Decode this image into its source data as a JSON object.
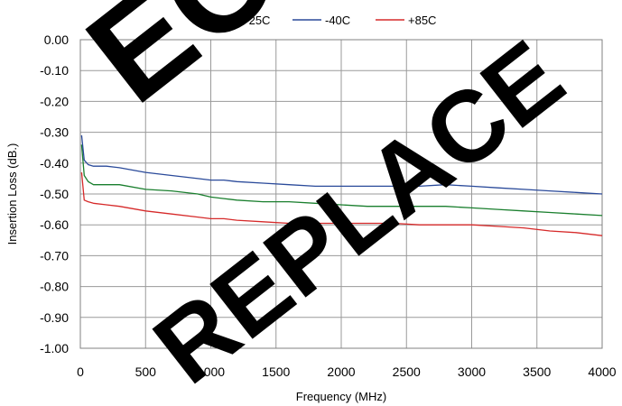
{
  "chart_data": {
    "type": "line",
    "title": "",
    "xlabel": "Frequency (MHz)",
    "ylabel": "Insertion Loss (dB.)",
    "xlim": [
      0,
      4000
    ],
    "ylim": [
      -1.0,
      0.0
    ],
    "x_ticks": [
      "0",
      "500",
      "1000",
      "1500",
      "2000",
      "2500",
      "3000",
      "3500",
      "4000"
    ],
    "y_ticks": [
      "0.00",
      "-0.10",
      "-0.20",
      "-0.30",
      "-0.40",
      "-0.50",
      "-0.60",
      "-0.70",
      "-0.80",
      "-0.90",
      "-1.00"
    ],
    "grid": true,
    "legend_position": "top-center",
    "series": [
      {
        "name": "+25C",
        "color": "#1a7f2e",
        "x": [
          10,
          30,
          60,
          100,
          200,
          300,
          500,
          700,
          900,
          1000,
          1100,
          1200,
          1400,
          1600,
          1800,
          2000,
          2200,
          2400,
          2600,
          2800,
          3000,
          3200,
          3400,
          3600,
          3800,
          4000
        ],
        "y": [
          -0.34,
          -0.44,
          -0.46,
          -0.47,
          -0.47,
          -0.47,
          -0.485,
          -0.49,
          -0.5,
          -0.51,
          -0.515,
          -0.52,
          -0.525,
          -0.525,
          -0.53,
          -0.535,
          -0.54,
          -0.54,
          -0.54,
          -0.54,
          -0.545,
          -0.55,
          -0.555,
          -0.56,
          -0.565,
          -0.57
        ]
      },
      {
        "name": "-40C",
        "color": "#2a4a9a",
        "x": [
          10,
          30,
          60,
          100,
          200,
          300,
          500,
          700,
          900,
          1000,
          1100,
          1200,
          1400,
          1600,
          1800,
          2000,
          2200,
          2400,
          2600,
          2800,
          3000,
          3200,
          3400,
          3600,
          3800,
          4000
        ],
        "y": [
          -0.31,
          -0.39,
          -0.405,
          -0.41,
          -0.41,
          -0.415,
          -0.43,
          -0.44,
          -0.45,
          -0.455,
          -0.455,
          -0.46,
          -0.465,
          -0.47,
          -0.475,
          -0.475,
          -0.475,
          -0.475,
          -0.475,
          -0.47,
          -0.475,
          -0.48,
          -0.485,
          -0.49,
          -0.495,
          -0.5
        ]
      },
      {
        "name": "+85C",
        "color": "#d62a2a",
        "x": [
          10,
          30,
          60,
          100,
          200,
          300,
          500,
          700,
          900,
          1000,
          1100,
          1200,
          1400,
          1600,
          1800,
          2000,
          2200,
          2400,
          2600,
          2800,
          3000,
          3200,
          3400,
          3600,
          3800,
          4000
        ],
        "y": [
          -0.43,
          -0.52,
          -0.525,
          -0.53,
          -0.535,
          -0.54,
          -0.555,
          -0.565,
          -0.575,
          -0.58,
          -0.58,
          -0.585,
          -0.59,
          -0.595,
          -0.595,
          -0.595,
          -0.595,
          -0.595,
          -0.6,
          -0.6,
          -0.6,
          -0.605,
          -0.61,
          -0.62,
          -0.625,
          -0.635
        ]
      }
    ],
    "watermark": [
      "EOL",
      "REPLACE"
    ]
  }
}
